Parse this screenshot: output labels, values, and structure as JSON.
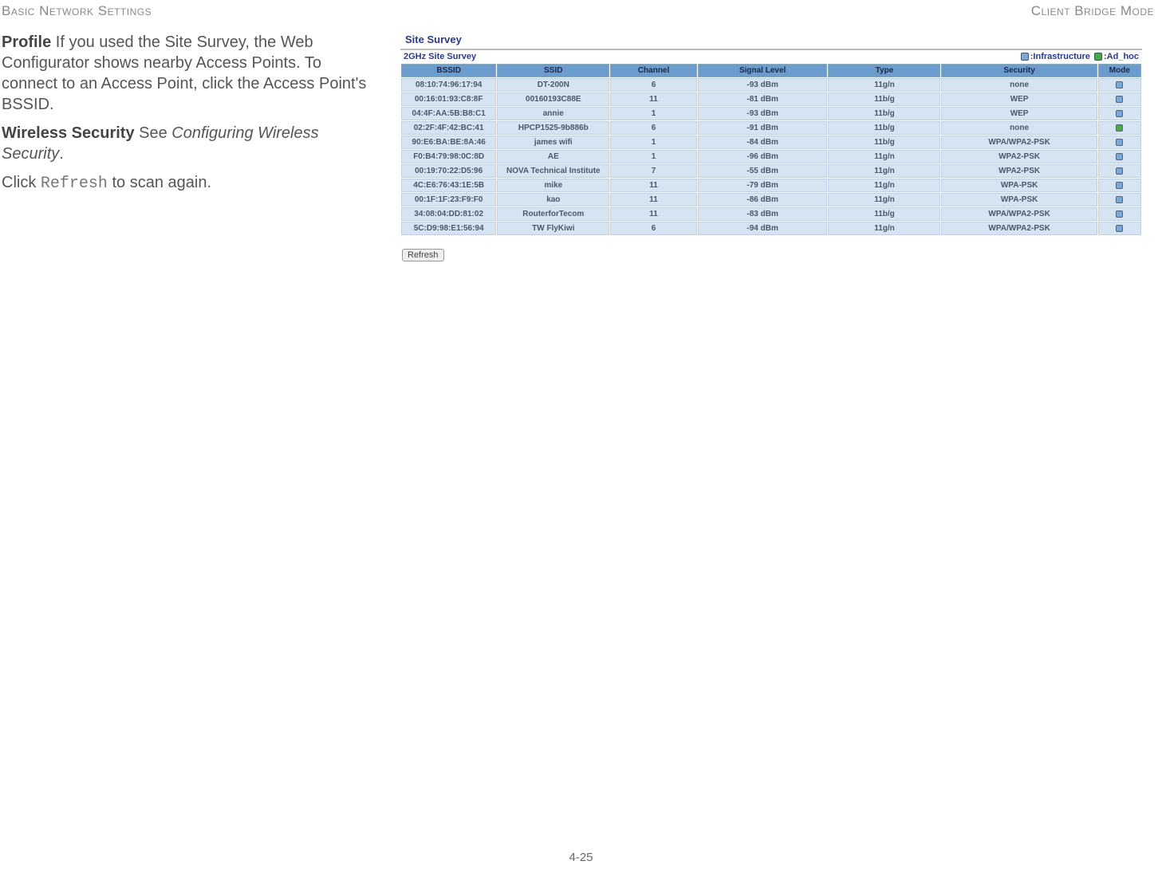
{
  "header": {
    "left": "Basic Network Settings",
    "right": "Client Bridge Mode"
  },
  "left": {
    "profile_label": "Profile",
    "profile_text": "  If you used the Site Survey, the Web Configurator shows nearby Access Points. To connect to an Access Point, click the Access Point's BSSID.",
    "ws_label": "Wireless Security",
    "ws_text_pre": "  See ",
    "ws_text_ital": "Configuring Wireless Security",
    "ws_text_post": ".",
    "refresh_pre": "Click ",
    "refresh_code": "Refresh",
    "refresh_post": " to scan again."
  },
  "survey": {
    "title": "Site Survey",
    "subtitle": "2GHz Site Survey",
    "legend_infra": ":Infrastructure",
    "legend_adhoc": ":Ad_hoc",
    "icon_infra_color": "#7aa8d8",
    "icon_adhoc_color": "#4aa84a",
    "columns": [
      "BSSID",
      "SSID",
      "Channel",
      "Signal Level",
      "Type",
      "Security",
      "Mode"
    ],
    "rows": [
      {
        "bssid": "08:10:74:96:17:94",
        "ssid": "DT-200N",
        "ch": "6",
        "sig": "-93 dBm",
        "type": "11g/n",
        "sec": "none",
        "mode": "infra"
      },
      {
        "bssid": "00:16:01:93:C8:8F",
        "ssid": "00160193C88E",
        "ch": "11",
        "sig": "-81 dBm",
        "type": "11b/g",
        "sec": "WEP",
        "mode": "infra"
      },
      {
        "bssid": "04:4F:AA:5B:B8:C1",
        "ssid": "annie",
        "ch": "1",
        "sig": "-93 dBm",
        "type": "11b/g",
        "sec": "WEP",
        "mode": "infra"
      },
      {
        "bssid": "02:2F:4F:42:BC:41",
        "ssid": "HPCP1525-9b886b",
        "ch": "6",
        "sig": "-91 dBm",
        "type": "11b/g",
        "sec": "none",
        "mode": "adhoc"
      },
      {
        "bssid": "90:E6:BA:BE:8A:46",
        "ssid": "james wifi",
        "ch": "1",
        "sig": "-84 dBm",
        "type": "11b/g",
        "sec": "WPA/WPA2-PSK",
        "mode": "infra"
      },
      {
        "bssid": "F0:B4:79:98:0C:8D",
        "ssid": "AE",
        "ch": "1",
        "sig": "-96 dBm",
        "type": "11g/n",
        "sec": "WPA2-PSK",
        "mode": "infra"
      },
      {
        "bssid": "00:19:70:22:D5:96",
        "ssid": "NOVA Technical Institute",
        "ch": "7",
        "sig": "-55 dBm",
        "type": "11g/n",
        "sec": "WPA2-PSK",
        "mode": "infra"
      },
      {
        "bssid": "4C:E6:76:43:1E:5B",
        "ssid": "mike",
        "ch": "11",
        "sig": "-79 dBm",
        "type": "11g/n",
        "sec": "WPA-PSK",
        "mode": "infra"
      },
      {
        "bssid": "00:1F:1F:23:F9:F0",
        "ssid": "kao",
        "ch": "11",
        "sig": "-86 dBm",
        "type": "11g/n",
        "sec": "WPA-PSK",
        "mode": "infra"
      },
      {
        "bssid": "34:08:04:DD:81:02",
        "ssid": "RouterforTecom",
        "ch": "11",
        "sig": "-83 dBm",
        "type": "11b/g",
        "sec": "WPA/WPA2-PSK",
        "mode": "infra"
      },
      {
        "bssid": "5C:D9:98:E1:56:94",
        "ssid": "TW FlyKiwi",
        "ch": "6",
        "sig": "-94 dBm",
        "type": "11g/n",
        "sec": "WPA/WPA2-PSK",
        "mode": "infra"
      }
    ],
    "refresh_btn": "Refresh"
  },
  "footer": "4-25"
}
